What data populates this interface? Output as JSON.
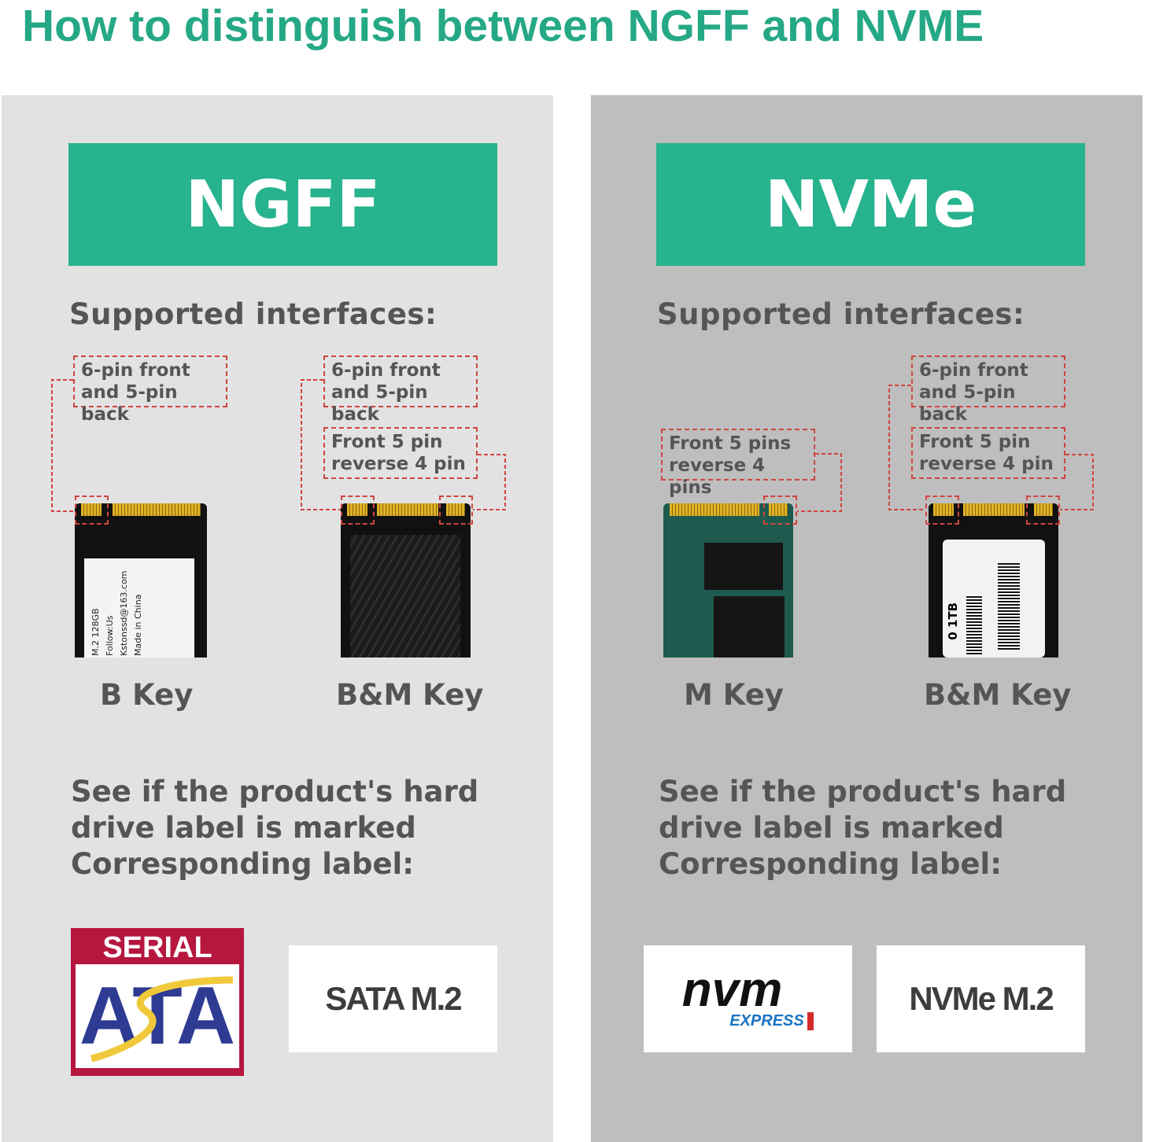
{
  "title": "How to distinguish between NGFF and NVME",
  "colors": {
    "accent": "#26b38e",
    "callout": "#d0443e",
    "left_bg": "#e2e2e2",
    "right_bg": "#bebebe"
  },
  "left": {
    "header": "NGFF",
    "subtitle": "Supported interfaces:",
    "cards": [
      {
        "key": "B Key",
        "callouts": [
          "6-pin front and 5-pin back"
        ],
        "label_text": [
          "M.2 128GB",
          "Follow:Us",
          "Kstonssd@163.com",
          "Made in China"
        ]
      },
      {
        "key": "B&M Key",
        "callouts": [
          "6-pin front and 5-pin back",
          "Front 5 pin reverse 4 pin"
        ]
      }
    ],
    "paragraph": [
      "See if the product's hard",
      "drive label is marked",
      "Corresponding label:"
    ],
    "logo": {
      "top": "SERIAL",
      "main": "ATA"
    },
    "label": "SATA M.2"
  },
  "right": {
    "header": "NVMe",
    "subtitle": "Supported interfaces:",
    "cards": [
      {
        "key": "M Key",
        "callouts": [
          "Front 5 pins reverse 4 pins"
        ]
      },
      {
        "key": "B&M Key",
        "callouts": [
          "6-pin front and 5-pin back",
          "Front 5 pin reverse 4 pin"
        ],
        "label_text": [
          "0 1TB"
        ]
      }
    ],
    "paragraph": [
      "See if the product's hard",
      "drive label is marked",
      "Corresponding label:"
    ],
    "logo": {
      "main": "nvm",
      "sub": "EXPRESS"
    },
    "label": "NVMe M.2"
  }
}
